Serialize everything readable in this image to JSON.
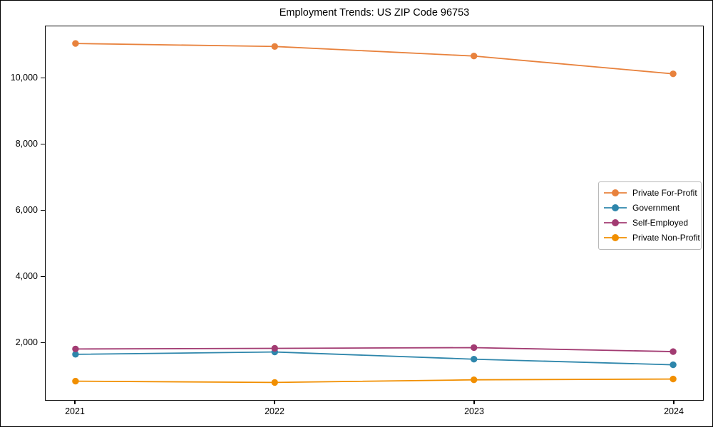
{
  "figure": {
    "background": "#ffffff",
    "border_color": "#000000"
  },
  "chart_data": {
    "type": "line",
    "title": "Employment Trends: US ZIP Code 96753",
    "xlabel": "",
    "ylabel": "",
    "grid": false,
    "legend_position": "center-right",
    "x": [
      2021,
      2022,
      2023,
      2024
    ],
    "x_tick_labels": [
      "2021",
      "2022",
      "2023",
      "2024"
    ],
    "y_ticks": [
      2000,
      4000,
      6000,
      8000,
      10000
    ],
    "y_tick_labels": [
      "2,000",
      "4,000",
      "6,000",
      "8,000",
      "10,000"
    ],
    "xlim": [
      2020.85,
      2024.15
    ],
    "ylim": [
      245,
      11570
    ],
    "series": [
      {
        "name": "Private For-Profit",
        "color": "#E8823D",
        "values": [
          11050,
          10960,
          10670,
          10130
        ]
      },
      {
        "name": "Government",
        "color": "#2E86AB",
        "values": [
          1630,
          1700,
          1480,
          1310
        ]
      },
      {
        "name": "Self-Employed",
        "color": "#A23B72",
        "values": [
          1790,
          1810,
          1830,
          1710
        ]
      },
      {
        "name": "Private Non-Profit",
        "color": "#F18F01",
        "values": [
          815,
          775,
          855,
          880
        ]
      }
    ]
  }
}
